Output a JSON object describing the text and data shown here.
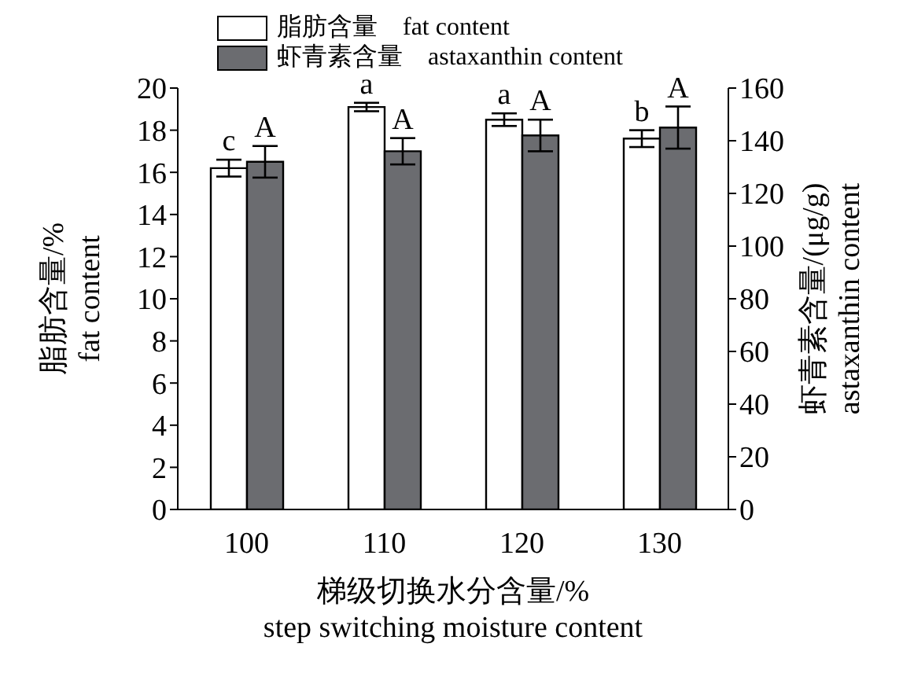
{
  "chart_data": {
    "type": "bar",
    "xlabel": "梯级切换水分含量/%\nstep switching moisture content",
    "ylabel": "脂肪含量/%\nfat content",
    "y2label": "虾青素含量/(μg/g)\nastaxanthin content",
    "categories": [
      "100",
      "110",
      "120",
      "130"
    ],
    "series": [
      {
        "name": "脂肪含量    fat content",
        "color": "#ffffff",
        "values": [
          16.2,
          19.1,
          18.5,
          17.6
        ],
        "errors": [
          0.4,
          0.2,
          0.3,
          0.4
        ],
        "value_labels": [
          "c",
          "a",
          "a",
          "b"
        ]
      },
      {
        "name": "虾青素含量    astaxanthin content",
        "color": "#6b6c70",
        "axis": "y2",
        "values": [
          132,
          136,
          142,
          145
        ],
        "errors": [
          6,
          5,
          6,
          8
        ],
        "value_labels": [
          "A",
          "A",
          "A",
          "A"
        ]
      }
    ],
    "ylim": [
      0,
      20
    ],
    "yticks": [
      0,
      2,
      4,
      6,
      8,
      10,
      12,
      14,
      16,
      18,
      20
    ],
    "y2lim": [
      0,
      160
    ],
    "y2ticks": [
      0,
      20,
      40,
      60,
      80,
      100,
      120,
      140,
      160
    ],
    "grid": false,
    "legend": "top left"
  }
}
